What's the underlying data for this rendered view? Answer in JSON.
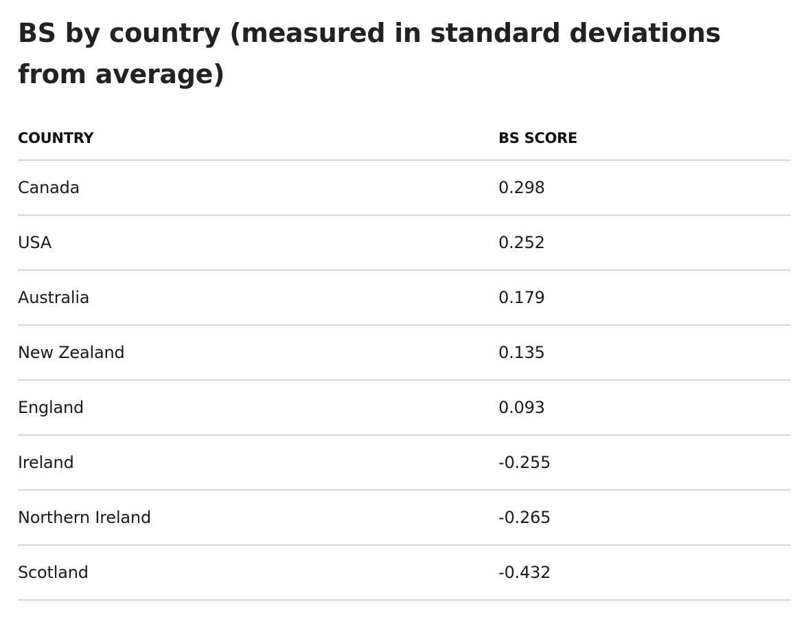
{
  "chart_data": {
    "type": "table",
    "title": "BS by country (measured in standard deviations from average)",
    "columns": [
      "COUNTRY",
      "BS SCORE"
    ],
    "rows": [
      {
        "country": "Canada",
        "score": "0.298"
      },
      {
        "country": "USA",
        "score": "0.252"
      },
      {
        "country": "Australia",
        "score": "0.179"
      },
      {
        "country": "New Zealand",
        "score": "0.135"
      },
      {
        "country": "England",
        "score": "0.093"
      },
      {
        "country": "Ireland",
        "score": "-0.255"
      },
      {
        "country": "Northern Ireland",
        "score": "-0.265"
      },
      {
        "country": "Scotland",
        "score": "-0.432"
      }
    ]
  }
}
